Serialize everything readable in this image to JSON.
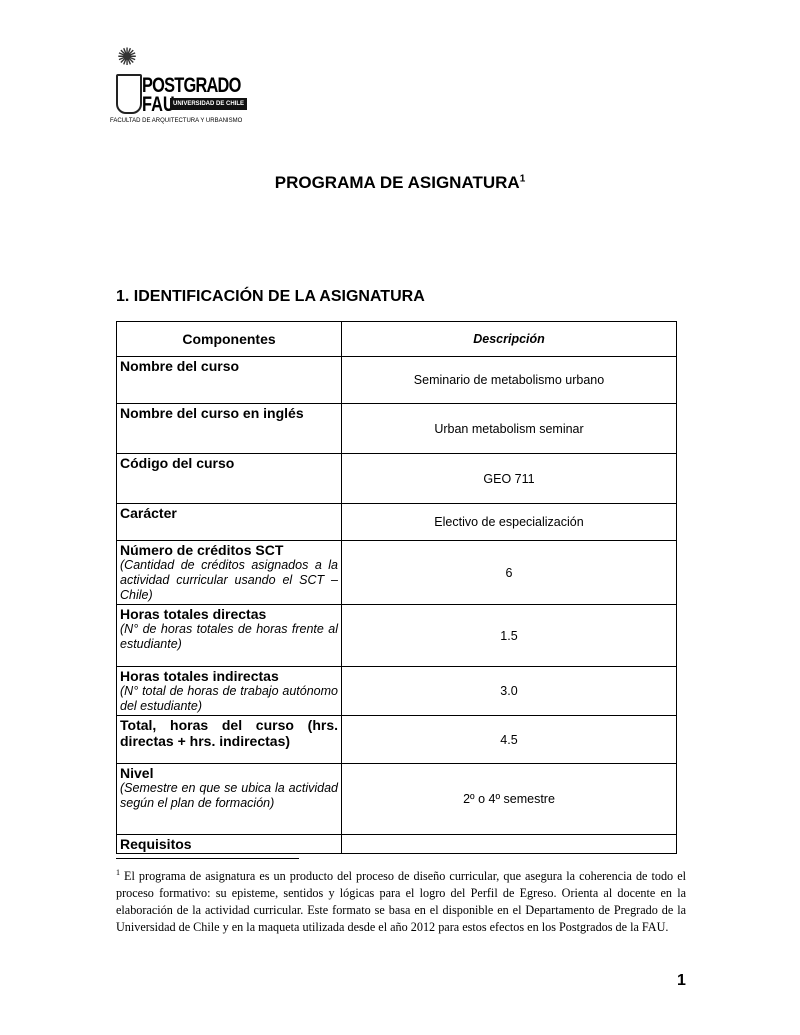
{
  "logo": {
    "icon": "university-crest-icon",
    "line1": "POSTGRADO",
    "line2": "FAU",
    "badge": "UNIVERSIDAD DE CHILE",
    "subtitle": "FACULTAD DE ARQUITECTURA Y URBANISMO"
  },
  "title": "PROGRAMA DE ASIGNATURA",
  "title_sup": "1",
  "section": "1. IDENTIFICACIÓN DE LA ASIGNATURA",
  "table": {
    "headers": [
      "Componentes",
      "Descripción"
    ],
    "rows": [
      {
        "label": "Nombre del curso",
        "note": "",
        "value": "Seminario de metabolismo urbano"
      },
      {
        "label": "Nombre del curso en inglés",
        "note": "",
        "value": "Urban metabolism seminar"
      },
      {
        "label": "Código del curso",
        "note": "",
        "value": "GEO 711"
      },
      {
        "label": "Carácter",
        "note": "",
        "value": "Electivo de especialización"
      },
      {
        "label": "Número de créditos SCT",
        "note": "(Cantidad de créditos asignados a la actividad curricular usando el SCT – Chile)",
        "value": "6"
      },
      {
        "label": "Horas totales directas",
        "note": "(N° de horas totales de horas frente al estudiante)",
        "value": "1.5"
      },
      {
        "label": "Horas totales indirectas",
        "note": "(N° total de horas de trabajo autónomo del estudiante)",
        "value": "3.0"
      },
      {
        "label": "Total, horas del curso (hrs. directas + hrs. indirectas)",
        "note": "",
        "value": "4.5"
      },
      {
        "label": "Nivel",
        "note": "(Semestre en que se ubica la actividad según el plan de formación)",
        "value": "2º o 4º semestre"
      },
      {
        "label": "Requisitos",
        "note": "",
        "value": ""
      }
    ]
  },
  "footnote": {
    "mark": "1",
    "text": "El programa de asignatura es un producto del proceso de diseño curricular, que asegura la coherencia de todo el proceso formativo: su episteme, sentidos y lógicas para el logro del Perfil de Egreso. Orienta al docente en la elaboración de la actividad curricular. Este formato se basa en el disponible en el Departamento de Pregrado de la Universidad de Chile y en la maqueta utilizada desde el año 2012 para estos efectos en los Postgrados de la FAU."
  },
  "page_number": "1"
}
